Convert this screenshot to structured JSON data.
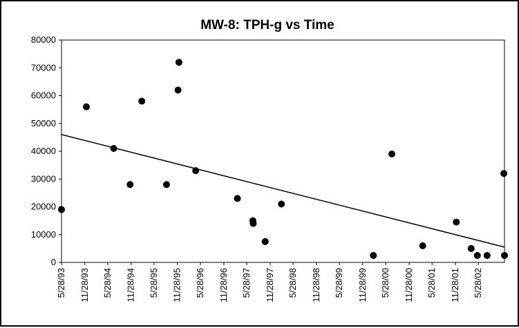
{
  "chart_data": {
    "type": "scatter",
    "title": "MW-8: TPH-g vs Time",
    "xlabel": "",
    "ylabel": "",
    "ylim": [
      0,
      80000
    ],
    "yticks": [
      "0",
      "10000",
      "20000",
      "30000",
      "40000",
      "50000",
      "60000",
      "70000",
      "80000"
    ],
    "xlim": [
      "5/28/93",
      "12/20/02"
    ],
    "xticks": [
      "5/28/93",
      "11/28/93",
      "5/28/94",
      "11/28/94",
      "5/28/95",
      "11/28/95",
      "5/28/96",
      "11/28/96",
      "5/28/97",
      "11/28/97",
      "5/28/98",
      "11/28/98",
      "5/28/99",
      "11/28/99",
      "5/28/00",
      "11/28/00",
      "5/28/01",
      "11/28/01",
      "5/28/02"
    ],
    "grid": false,
    "legend": false,
    "marker_color": "#000000",
    "series": [
      {
        "points": [
          {
            "x": "5/28/93",
            "y": 19000
          },
          {
            "x": "12/10/93",
            "y": 56000
          },
          {
            "x": "7/14/94",
            "y": 41000
          },
          {
            "x": "11/20/94",
            "y": 28000
          },
          {
            "x": "2/20/95",
            "y": 58000
          },
          {
            "x": "9/3/95",
            "y": 28000
          },
          {
            "x": "12/10/95",
            "y": 72000
          },
          {
            "x": "12/3/95",
            "y": 62000
          },
          {
            "x": "4/20/96",
            "y": 33000
          },
          {
            "x": "3/15/97",
            "y": 23000
          },
          {
            "x": "7/15/97",
            "y": 15000
          },
          {
            "x": "7/18/97",
            "y": 14000
          },
          {
            "x": "10/20/97",
            "y": 7500
          },
          {
            "x": "2/25/98",
            "y": 21000
          },
          {
            "x": "2/20/00",
            "y": 2500
          },
          {
            "x": "7/15/00",
            "y": 39000
          },
          {
            "x": "3/15/01",
            "y": 6000
          },
          {
            "x": "12/5/01",
            "y": 14500
          },
          {
            "x": "4/1/02",
            "y": 5000
          },
          {
            "x": "5/20/02",
            "y": 2500
          },
          {
            "x": "8/5/02",
            "y": 2500
          },
          {
            "x": "12/15/02",
            "y": 32000
          },
          {
            "x": "12/20/02",
            "y": 2500
          }
        ]
      }
    ],
    "trendline": {
      "type": "linear",
      "start": {
        "x": "5/28/93",
        "y": 46000
      },
      "end": {
        "x": "12/20/02",
        "y": 5500
      }
    }
  }
}
